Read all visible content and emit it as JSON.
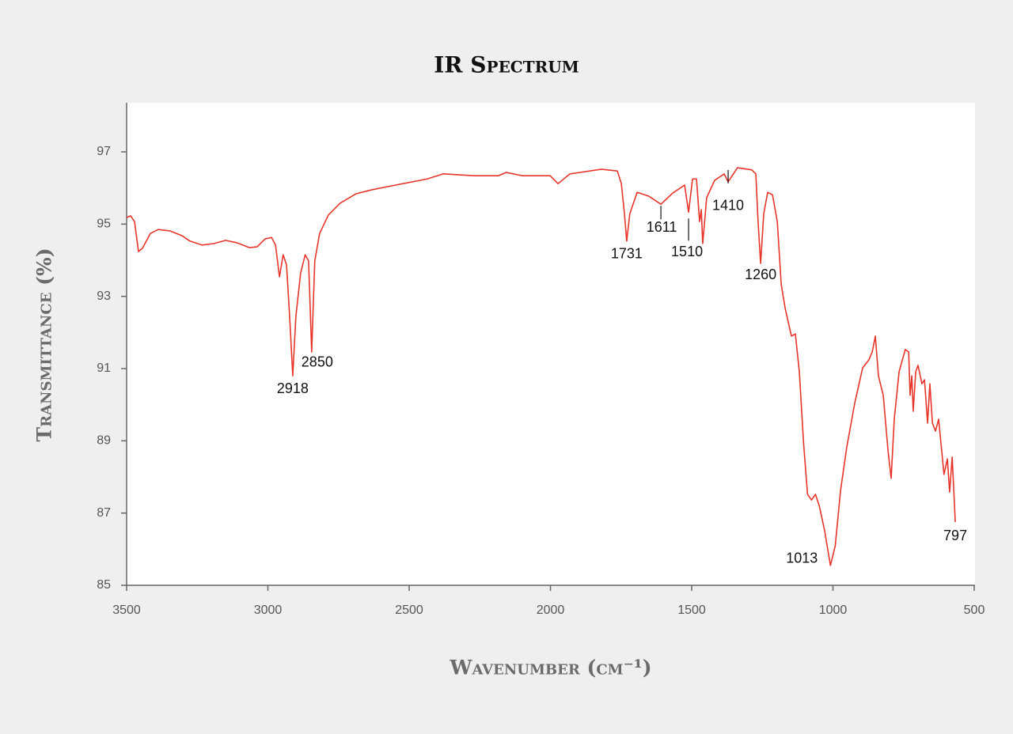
{
  "chart_data": {
    "type": "line",
    "title": "IR Spectrum",
    "xlabel": "Wavenumber (cm⁻¹)",
    "ylabel": "Transmittance (%)",
    "color": "#e8352a",
    "xlim": [
      3500,
      500
    ],
    "ylim": [
      85,
      98.4
    ],
    "xticks": [
      3500,
      3000,
      2500,
      2000,
      1500,
      1000,
      500
    ],
    "yticks": [
      85,
      87,
      89,
      91,
      93,
      95,
      97
    ],
    "x": [
      3500,
      3486,
      3472,
      3458,
      3444,
      3416,
      3388,
      3346,
      3304,
      3276,
      3233,
      3192,
      3150,
      3108,
      3066,
      3038,
      3010,
      2987,
      2973,
      2959,
      2946,
      2934,
      2923,
      2912,
      2901,
      2884,
      2868,
      2856,
      2845,
      2834,
      2817,
      2786,
      2744,
      2688,
      2632,
      2548,
      2436,
      2380,
      2268,
      2184,
      2156,
      2100,
      2001,
      1973,
      1931,
      1819,
      1763,
      1749,
      1738,
      1730,
      1719,
      1693,
      1651,
      1609,
      1567,
      1525,
      1511,
      1497,
      1483,
      1472,
      1466,
      1461,
      1447,
      1419,
      1385,
      1371,
      1338,
      1287,
      1273,
      1265,
      1256,
      1245,
      1231,
      1214,
      1197,
      1183,
      1169,
      1147,
      1133,
      1119,
      1104,
      1090,
      1076,
      1062,
      1048,
      1029,
      1009,
      992,
      973,
      951,
      923,
      895,
      873,
      861,
      850,
      839,
      822,
      805,
      794,
      783,
      766,
      744,
      732,
      727,
      721,
      716,
      707,
      699,
      685,
      676,
      665,
      657,
      648,
      637,
      626,
      615,
      607,
      595,
      587,
      578,
      567
    ],
    "values": [
      95.18,
      95.23,
      95.07,
      94.24,
      94.33,
      94.74,
      94.85,
      94.81,
      94.68,
      94.53,
      94.42,
      94.46,
      94.55,
      94.48,
      94.35,
      94.37,
      94.59,
      94.63,
      94.42,
      93.54,
      94.15,
      93.87,
      92.44,
      90.8,
      92.44,
      93.65,
      94.15,
      93.98,
      91.46,
      93.98,
      94.74,
      95.25,
      95.58,
      95.84,
      95.95,
      96.08,
      96.25,
      96.39,
      96.34,
      96.34,
      96.43,
      96.34,
      96.34,
      96.12,
      96.39,
      96.52,
      96.47,
      96.12,
      95.29,
      94.53,
      95.29,
      95.88,
      95.77,
      95.55,
      95.86,
      96.08,
      95.33,
      96.25,
      96.25,
      95.07,
      95.4,
      94.46,
      95.73,
      96.21,
      96.39,
      96.17,
      96.56,
      96.5,
      96.39,
      95.07,
      93.91,
      95.29,
      95.88,
      95.81,
      95.07,
      93.32,
      92.66,
      91.9,
      91.96,
      90.91,
      88.94,
      87.52,
      87.36,
      87.52,
      87.19,
      86.49,
      85.55,
      86.09,
      87.63,
      88.83,
      90.04,
      91.02,
      91.24,
      91.46,
      91.9,
      90.8,
      90.26,
      88.72,
      87.96,
      89.6,
      90.91,
      91.53,
      91.46,
      90.26,
      90.8,
      89.82,
      90.91,
      91.09,
      90.58,
      90.69,
      89.49,
      90.58,
      89.49,
      89.27,
      89.6,
      88.72,
      88.07,
      88.5,
      87.58,
      88.55,
      86.75
    ],
    "annotations": [
      {
        "text": "2918",
        "x": 2912,
        "y": 90.8
      },
      {
        "text": "2850",
        "x": 2845,
        "y": 91.46
      },
      {
        "text": "1731",
        "x": 1730,
        "y": 94.53
      },
      {
        "text": "1611",
        "x": 1609,
        "y": 95.55
      },
      {
        "text": "1510",
        "x": 1511,
        "y": 95.33
      },
      {
        "text": "1410",
        "x": 1371,
        "y": 96.17
      },
      {
        "text": "1260",
        "x": 1256,
        "y": 93.91
      },
      {
        "text": "1013",
        "x": 1009,
        "y": 85.55
      },
      {
        "text": "797",
        "x": 567,
        "y": 86.75
      }
    ]
  }
}
